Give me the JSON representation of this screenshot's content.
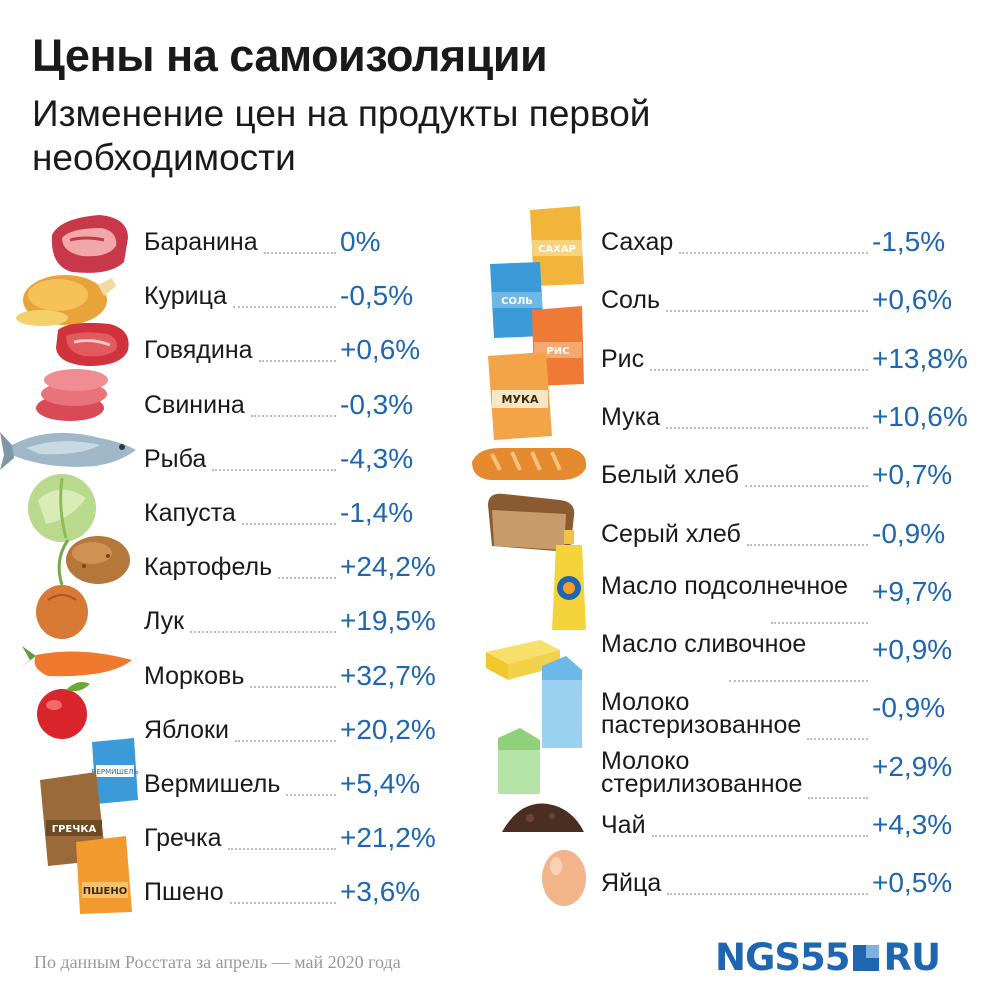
{
  "title": "Цены на самоизоляции",
  "subtitle": "Изменение цен на продукты первой необходимости",
  "footer": {
    "source": "По данным Росстата за апрель — май 2020 года",
    "logo_text_left": "NGS55",
    "logo_text_right": "RU"
  },
  "colors": {
    "value": "#1f66b0",
    "text": "#1a1a1a",
    "dots": "#bdbdbd"
  },
  "icons_left": [
    "lamb-meat-icon",
    "chicken-icon",
    "beef-steak-icon",
    "pork-slices-icon",
    "fish-icon",
    "cabbage-icon",
    "potato-icon",
    "onion-icon",
    "carrot-icon",
    "apple-icon",
    "vermicelli-pack-icon",
    "buckwheat-pack-icon",
    "millet-pack-icon"
  ],
  "icons_right": [
    "sugar-pack-icon",
    "salt-pack-icon",
    "rice-pack-icon",
    "flour-pack-icon",
    "white-bread-icon",
    "grey-bread-icon",
    "sunflower-oil-bottle-icon",
    "butter-icon",
    "milk-carton-icon",
    "milk-carton-green-icon",
    "tea-leaves-icon",
    "egg-icon"
  ],
  "icon_labels": {
    "sugar": "САХАР",
    "salt": "СОЛЬ",
    "rice": "РИС",
    "flour": "МУКА",
    "vermicelli": "ВЕРМИШЕЛЬ",
    "buckwheat": "ГРЕЧКА",
    "millet": "ПШЕНО"
  },
  "chart_data": {
    "type": "table",
    "title": "Цены на самоизоляции",
    "subtitle": "Изменение цен на продукты первой необходимости",
    "columns": [
      {
        "rows": [
          {
            "label": "Баранина",
            "value": 0,
            "display": "0%"
          },
          {
            "label": "Курица",
            "value": -0.5,
            "display": "-0,5%"
          },
          {
            "label": "Говядина",
            "value": 0.6,
            "display": "+0,6%"
          },
          {
            "label": "Свинина",
            "value": -0.3,
            "display": "-0,3%"
          },
          {
            "label": "Рыба",
            "value": -4.3,
            "display": "-4,3%"
          },
          {
            "label": "Капуста",
            "value": -1.4,
            "display": "-1,4%"
          },
          {
            "label": "Картофель",
            "value": 24.2,
            "display": "+24,2%"
          },
          {
            "label": "Лук",
            "value": 19.5,
            "display": "+19,5%"
          },
          {
            "label": "Морковь",
            "value": 32.7,
            "display": "+32,7%"
          },
          {
            "label": "Яблоки",
            "value": 20.2,
            "display": "+20,2%"
          },
          {
            "label": "Вермишель",
            "value": 5.4,
            "display": "+5,4%"
          },
          {
            "label": "Гречка",
            "value": 21.2,
            "display": "+21,2%"
          },
          {
            "label": "Пшено",
            "value": 3.6,
            "display": "+3,6%"
          }
        ]
      },
      {
        "rows": [
          {
            "label": "Сахар",
            "value": -1.5,
            "display": "-1,5%"
          },
          {
            "label": "Соль",
            "value": 0.6,
            "display": "+0,6%"
          },
          {
            "label": "Рис",
            "value": 13.8,
            "display": "+13,8%"
          },
          {
            "label": "Мука",
            "value": 10.6,
            "display": "+10,6%"
          },
          {
            "label": "Белый хлеб",
            "value": 0.7,
            "display": "+0,7%"
          },
          {
            "label": "Серый хлеб",
            "value": -0.9,
            "display": "-0,9%"
          },
          {
            "label": "Масло подсолнечное",
            "value": 9.7,
            "display": "+9,7%"
          },
          {
            "label": "Масло сливочное",
            "value": 0.9,
            "display": "+0,9%"
          },
          {
            "label": "Молоко пастеризованное",
            "value": -0.9,
            "display": "-0,9%"
          },
          {
            "label": "Молоко стерилизованное",
            "value": 2.9,
            "display": "+2,9%"
          },
          {
            "label": "Чай",
            "value": 4.3,
            "display": "+4,3%"
          },
          {
            "label": "Яйца",
            "value": 0.5,
            "display": "+0,5%"
          }
        ]
      }
    ]
  }
}
